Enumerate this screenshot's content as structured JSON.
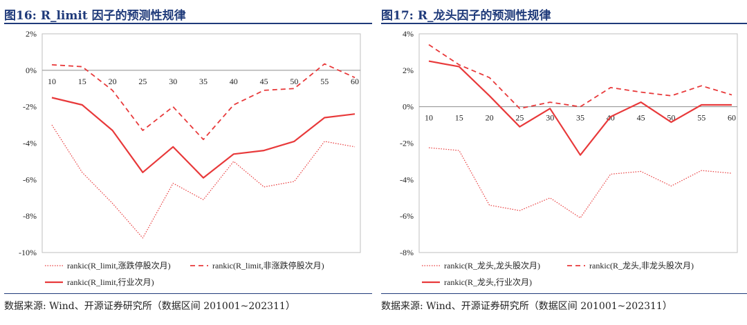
{
  "charts": [
    {
      "title": "图16:  R_limit 因子的预测性规律",
      "source": "数据来源:  Wind、开源证券研究所（数据区间 201001~202311）",
      "chart_data": {
        "type": "line",
        "x": [
          10,
          15,
          20,
          25,
          30,
          35,
          40,
          45,
          50,
          55,
          60
        ],
        "ylim": [
          -10,
          2
        ],
        "yticks": [
          2,
          0,
          -2,
          -4,
          -6,
          -8,
          -10
        ],
        "ytick_labels": [
          "2%",
          "0%",
          "-2%",
          "-4%",
          "-6%",
          "-8%",
          "-10%"
        ],
        "unit": "%",
        "grid": false,
        "legend_position": "bottom",
        "series": [
          {
            "name": "rankic(R_limit,涨跌停股次月)",
            "style": "dotted",
            "color": "#e8393a",
            "values": [
              -3.0,
              -5.6,
              -7.3,
              -9.2,
              -6.2,
              -7.1,
              -5.0,
              -6.4,
              -6.1,
              -3.9,
              -4.2
            ]
          },
          {
            "name": "rankic(R_limit,非涨跌停股次月)",
            "style": "dashed",
            "color": "#e8393a",
            "values": [
              0.3,
              0.2,
              -1.1,
              -3.3,
              -2.0,
              -3.8,
              -1.9,
              -1.1,
              -1.0,
              0.35,
              -0.4
            ]
          },
          {
            "name": "rankic(R_limit,行业次月)",
            "style": "solid",
            "color": "#e8393a",
            "values": [
              -1.5,
              -1.9,
              -3.3,
              -5.6,
              -4.2,
              -5.9,
              -4.6,
              -4.4,
              -3.9,
              -2.6,
              -2.4
            ]
          }
        ]
      }
    },
    {
      "title": "图17:  R_龙头因子的预测性规律",
      "source": "数据来源:  Wind、开源证券研究所（数据区间 201001~202311）",
      "chart_data": {
        "type": "line",
        "x": [
          10,
          15,
          20,
          25,
          30,
          35,
          40,
          45,
          50,
          55,
          60
        ],
        "ylim": [
          -8,
          4
        ],
        "yticks": [
          4,
          2,
          0,
          -2,
          -4,
          -6,
          -8
        ],
        "ytick_labels": [
          "4%",
          "2%",
          "0%",
          "-2%",
          "-4%",
          "-6%",
          "-8%"
        ],
        "unit": "%",
        "grid": false,
        "legend_position": "bottom",
        "series": [
          {
            "name": "rankic(R_龙头,龙头股次月)",
            "style": "dotted",
            "color": "#e8393a",
            "values": [
              -2.25,
              -2.4,
              -5.4,
              -5.7,
              -5.0,
              -6.1,
              -3.7,
              -3.55,
              -4.35,
              -3.5,
              -3.65
            ]
          },
          {
            "name": "rankic(R_龙头,非龙头股次月)",
            "style": "dashed",
            "color": "#e8393a",
            "values": [
              3.4,
              2.3,
              1.6,
              -0.1,
              0.25,
              0.0,
              1.05,
              0.8,
              0.6,
              1.15,
              0.65
            ]
          },
          {
            "name": "rankic(R_龙头,行业次月)",
            "style": "solid",
            "color": "#e8393a",
            "values": [
              2.5,
              2.2,
              0.6,
              -1.1,
              -0.1,
              -2.65,
              -0.55,
              0.25,
              -0.85,
              0.1,
              0.1
            ]
          }
        ]
      }
    }
  ]
}
